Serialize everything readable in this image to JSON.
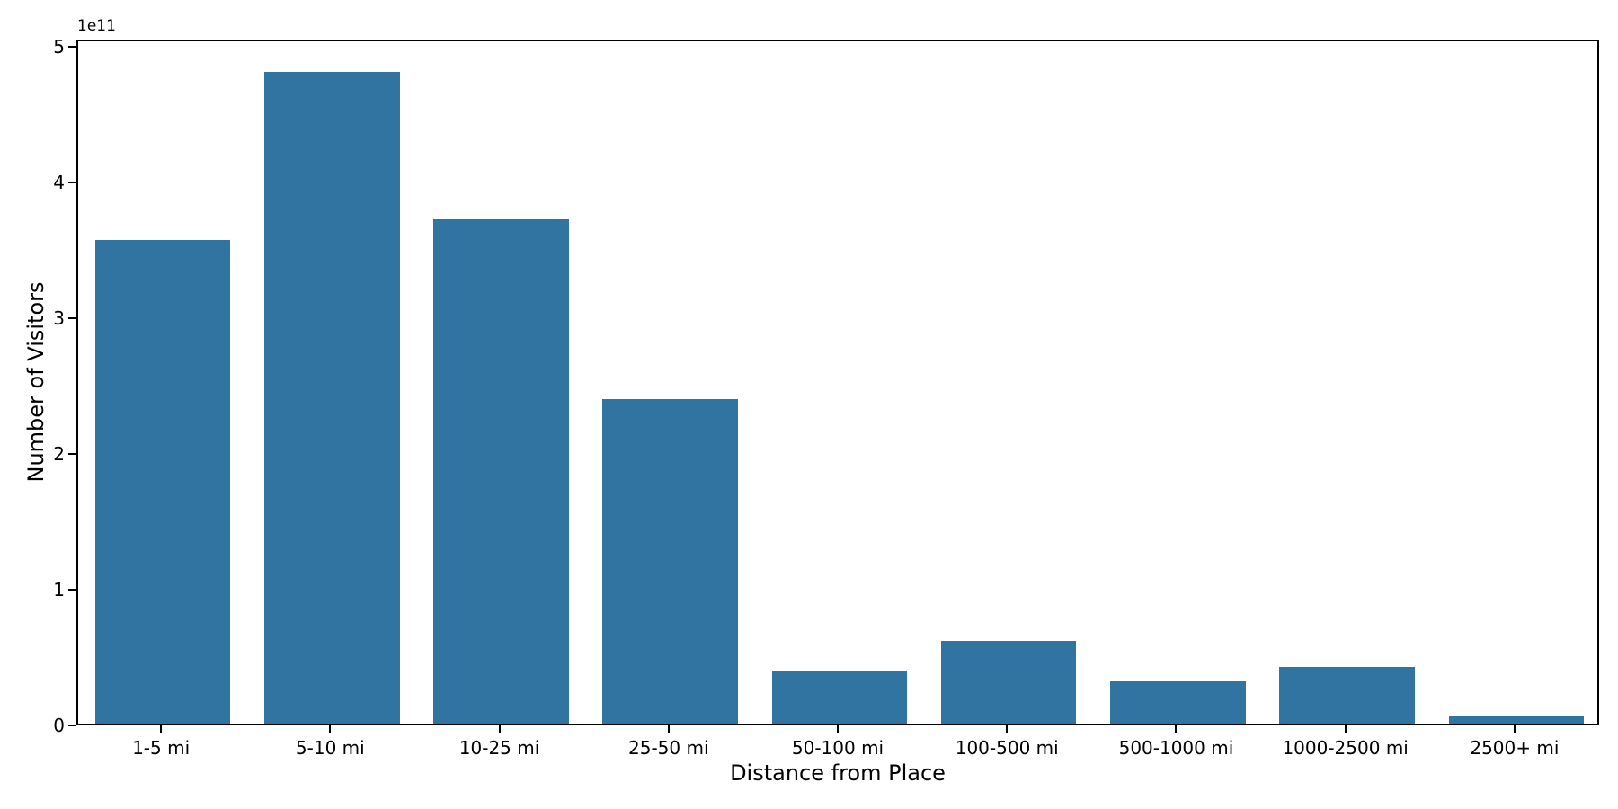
{
  "chart_data": {
    "type": "bar",
    "title": "",
    "xlabel": "Distance from Place",
    "ylabel": "Number of Visitors",
    "offset_text": "1e11",
    "categories": [
      "1-5 mi",
      "5-10 mi",
      "10-25 mi",
      "25-50 mi",
      "50-100 mi",
      "100-500 mi",
      "500-1000 mi",
      "1000-2500 mi",
      "2500+ mi"
    ],
    "values": [
      356000000000,
      480000000000,
      371000000000,
      239000000000,
      39000000000,
      61000000000,
      31000000000,
      42000000000,
      6000000000
    ],
    "bar_color": "#3274a1",
    "axis_color": "#000000",
    "background_color": "#ffffff",
    "ylim": [
      0,
      505000000000
    ],
    "yticks": [
      0,
      100000000000,
      200000000000,
      300000000000,
      400000000000,
      500000000000
    ],
    "ytick_labels": [
      "0",
      "1",
      "2",
      "3",
      "4",
      "5"
    ],
    "grid": false,
    "legend_position": "none",
    "bar_width_fraction": 0.8
  }
}
